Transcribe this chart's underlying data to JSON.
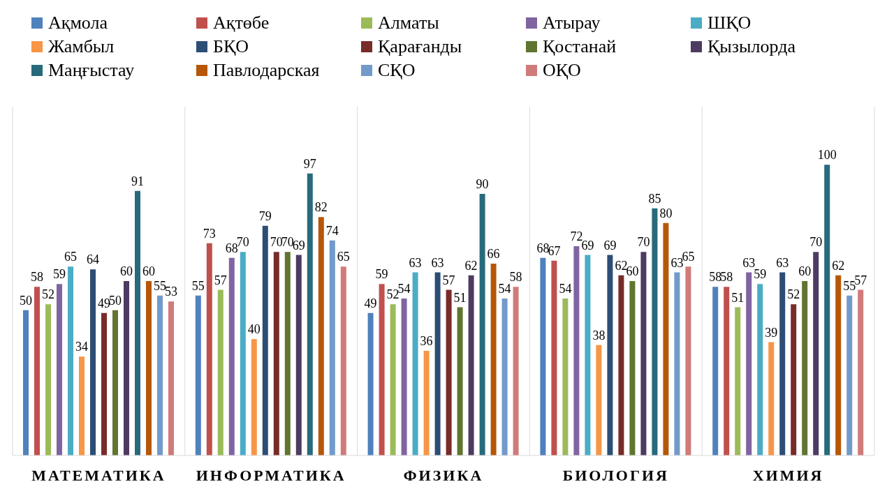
{
  "chart_data": {
    "type": "bar",
    "categories": [
      "МАТЕМАТИКА",
      "ИНФОРМАТИКА",
      "ФИЗИКА",
      "БИОЛОГИЯ",
      "ХИМИЯ"
    ],
    "series": [
      {
        "name": "Ақмола",
        "color": "#4f81bd",
        "values": [
          50,
          55,
          49,
          68,
          58
        ]
      },
      {
        "name": "Ақтөбе",
        "color": "#c0504d",
        "values": [
          58,
          73,
          59,
          67,
          58
        ]
      },
      {
        "name": "Алматы",
        "color": "#9bbb59",
        "values": [
          52,
          57,
          52,
          54,
          51
        ]
      },
      {
        "name": "Атырау",
        "color": "#8064a2",
        "values": [
          59,
          68,
          54,
          72,
          63
        ]
      },
      {
        "name": "ШҚО",
        "color": "#4bacc6",
        "values": [
          65,
          70,
          63,
          69,
          59
        ]
      },
      {
        "name": "Жамбыл",
        "color": "#f79646",
        "values": [
          34,
          40,
          36,
          38,
          39
        ]
      },
      {
        "name": "БҚО",
        "color": "#2c4d75",
        "values": [
          64,
          79,
          63,
          69,
          63
        ]
      },
      {
        "name": "Қарағанды",
        "color": "#772c2a",
        "values": [
          49,
          70,
          57,
          62,
          52
        ]
      },
      {
        "name": "Қостанай",
        "color": "#5f7530",
        "values": [
          50,
          70,
          51,
          60,
          60
        ]
      },
      {
        "name": "Қызылорда",
        "color": "#4d3b62",
        "values": [
          60,
          69,
          62,
          70,
          70
        ]
      },
      {
        "name": "Маңғыстау",
        "color": "#276a7c",
        "values": [
          91,
          97,
          90,
          85,
          100
        ]
      },
      {
        "name": "Павлодарская",
        "color": "#b65708",
        "values": [
          60,
          82,
          66,
          80,
          62
        ]
      },
      {
        "name": "СҚО",
        "color": "#729aca",
        "values": [
          55,
          74,
          54,
          63,
          55
        ]
      },
      {
        "name": "ОҚО",
        "color": "#d07b7a",
        "values": [
          53,
          65,
          58,
          65,
          57
        ]
      }
    ],
    "data_labels": true,
    "grid": "x",
    "legend": "top"
  }
}
